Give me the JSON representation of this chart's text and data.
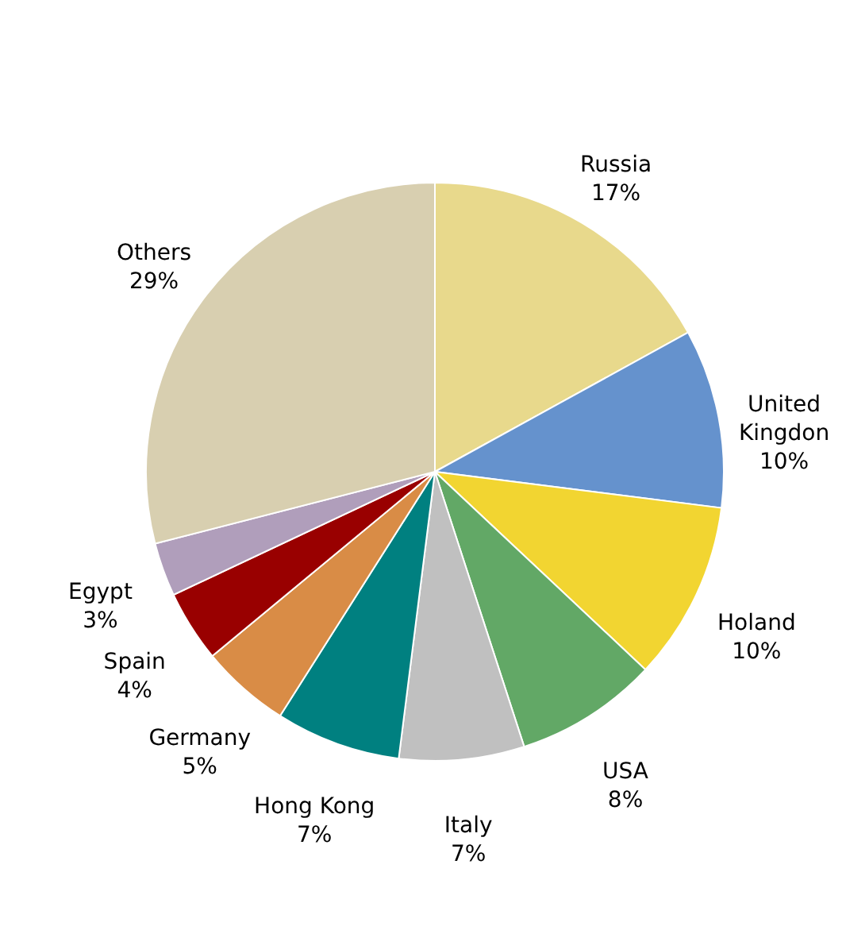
{
  "chart_data": {
    "type": "pie",
    "categories": [
      "Russia",
      "United Kingdon",
      "Holand",
      "USA",
      "Italy",
      "Hong Kong",
      "Germany",
      "Spain",
      "Egypt",
      "Others"
    ],
    "values": [
      17,
      10,
      10,
      8,
      7,
      7,
      5,
      4,
      3,
      29
    ],
    "value_labels": [
      "17%",
      "10%",
      "10%",
      "8%",
      "7%",
      "7%",
      "5%",
      "4%",
      "3%",
      "29%"
    ],
    "colors": [
      "#e8d98c",
      "#6592cd",
      "#f2d531",
      "#62a866",
      "#c0c0c0",
      "#008080",
      "#d98c46",
      "#990000",
      "#b09ebb",
      "#d8cfb0"
    ]
  }
}
